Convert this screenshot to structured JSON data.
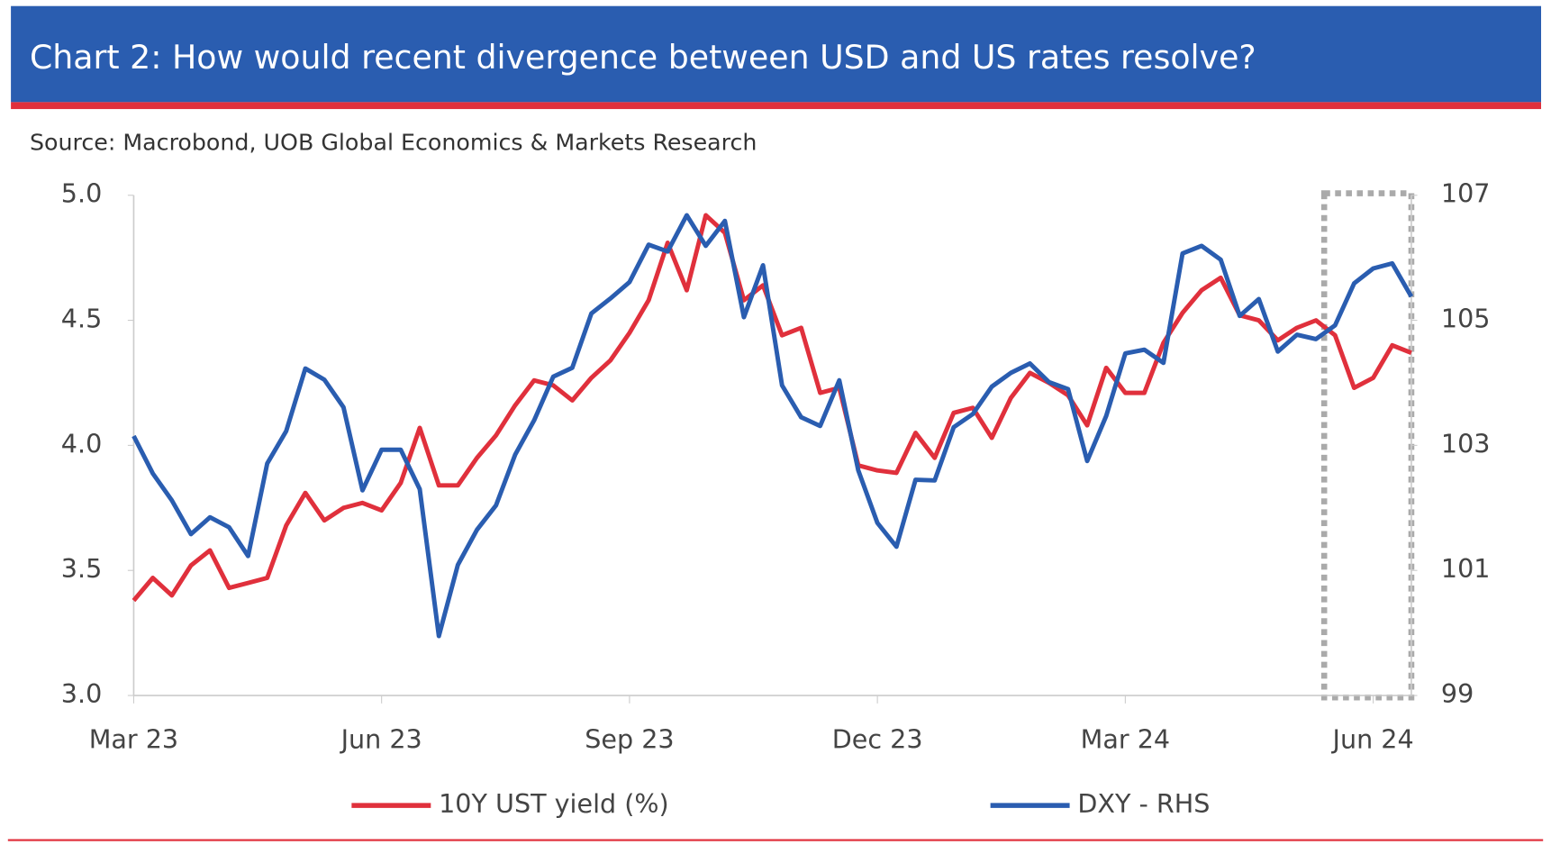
{
  "chart_data": {
    "type": "line",
    "title": "Chart 2: How would recent divergence between USD and US rates resolve?",
    "subtitle": "Source: Macrobond, UOB Global Economics & Markets Research",
    "categories": [
      "Mar 23",
      null,
      null,
      null,
      null,
      null,
      null,
      null,
      null,
      null,
      null,
      null,
      null,
      "Jun 23",
      null,
      null,
      null,
      null,
      null,
      null,
      null,
      null,
      null,
      null,
      null,
      null,
      "Sep 23",
      null,
      null,
      null,
      null,
      null,
      null,
      null,
      null,
      null,
      null,
      null,
      null,
      "Dec 23",
      null,
      null,
      null,
      null,
      null,
      null,
      null,
      null,
      null,
      null,
      null,
      null,
      "Mar 24",
      null,
      null,
      null,
      null,
      null,
      null,
      null,
      null,
      null,
      null,
      null,
      null,
      "Jun 24",
      null,
      null
    ],
    "series": [
      {
        "name": "10Y UST yield (%)",
        "color": "#e0303c",
        "axis": "y",
        "values": [
          3.38,
          3.47,
          3.4,
          3.52,
          3.58,
          3.43,
          3.45,
          3.47,
          3.68,
          3.81,
          3.7,
          3.75,
          3.77,
          3.74,
          3.85,
          4.07,
          3.84,
          3.84,
          3.95,
          4.04,
          4.16,
          4.26,
          4.24,
          4.18,
          4.27,
          4.34,
          4.45,
          4.58,
          4.81,
          4.62,
          4.92,
          4.85,
          4.58,
          4.64,
          4.44,
          4.47,
          4.21,
          4.23,
          3.92,
          3.9,
          3.89,
          4.05,
          3.95,
          4.13,
          4.15,
          4.03,
          4.19,
          4.29,
          4.25,
          4.2,
          4.08,
          4.31,
          4.21,
          4.21,
          4.41,
          4.53,
          4.62,
          4.67,
          4.52,
          4.5,
          4.42,
          4.47,
          4.5,
          4.44,
          4.23,
          4.27,
          4.4,
          4.37
        ]
      },
      {
        "name": "DXY - RHS",
        "color": "#2a5db0",
        "axis": "y2",
        "values": [
          103.15,
          102.55,
          102.12,
          101.58,
          101.85,
          101.69,
          101.23,
          102.71,
          103.23,
          104.23,
          104.05,
          103.61,
          102.28,
          102.93,
          102.93,
          102.3,
          99.95,
          101.09,
          101.65,
          102.04,
          102.85,
          103.4,
          104.1,
          104.24,
          105.11,
          105.35,
          105.61,
          106.21,
          106.1,
          106.68,
          106.19,
          106.59,
          105.05,
          105.88,
          103.96,
          103.45,
          103.31,
          104.04,
          102.6,
          101.76,
          101.38,
          102.45,
          102.44,
          103.29,
          103.5,
          103.94,
          104.16,
          104.31,
          104.01,
          103.9,
          102.75,
          103.47,
          104.47,
          104.53,
          104.32,
          106.07,
          106.19,
          105.97,
          105.07,
          105.34,
          104.5,
          104.77,
          104.7,
          104.92,
          105.59,
          105.83,
          105.91,
          105.38
        ]
      }
    ],
    "ylim": [
      3,
      5
    ],
    "yticks": [
      {
        "value": 3,
        "label": "3.0"
      },
      3.5,
      {
        "value": 4,
        "label": "4.0"
      },
      4.5,
      {
        "value": 5,
        "label": "5.0"
      }
    ],
    "y2lim": [
      99,
      107
    ],
    "y2ticks": [
      99,
      101,
      103,
      105,
      107
    ],
    "grid": false,
    "legend": "bottom"
  }
}
